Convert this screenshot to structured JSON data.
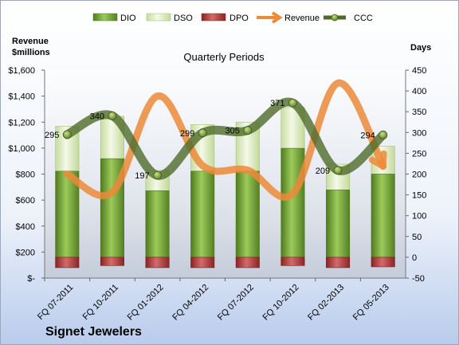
{
  "chart_data": {
    "type": "bar",
    "title": "Quarterly Periods",
    "company": "Signet Jewelers",
    "left_axis_title_line1": "Revenue",
    "left_axis_title_line2": "$millions",
    "right_axis_title": "Days",
    "categories": [
      "FQ 07-2011",
      "FQ 10-2011",
      "FQ 01-2012",
      "FQ 04-2012",
      "FQ 07-2012",
      "FQ 10-2012",
      "FQ 02-2013",
      "FQ 05-2013"
    ],
    "left_axis": {
      "min": 0,
      "max": 1600,
      "step": 200,
      "tick_labels": [
        "$-",
        "$200",
        "$400",
        "$600",
        "$800",
        "$1,000",
        "$1,200",
        "$1,400",
        "$1,600"
      ]
    },
    "right_axis": {
      "min": -50,
      "max": 450,
      "step": 50,
      "tick_labels": [
        "-50",
        "0",
        "50",
        "100",
        "150",
        "200",
        "250",
        "300",
        "350",
        "400",
        "450"
      ]
    },
    "series": [
      {
        "name": "DIO",
        "kind": "stacked-bar",
        "axis": "right",
        "color": "#7aa83a",
        "values": [
          207,
          237,
          160,
          207,
          207,
          262,
          162,
          200
        ]
      },
      {
        "name": "DSO",
        "kind": "stacked-bar",
        "axis": "right",
        "color": "#e3f0c8",
        "values": [
          108,
          102,
          49,
          112,
          118,
          98,
          62,
          67
        ]
      },
      {
        "name": "DPO",
        "kind": "stacked-bar-negative",
        "axis": "right",
        "color": "#b03a3a",
        "values": [
          -25,
          -20,
          -25,
          -25,
          -25,
          -20,
          -25,
          -23
        ]
      },
      {
        "name": "Revenue",
        "kind": "line",
        "axis": "left",
        "color": "#ec8a3a",
        "values": [
          800,
          660,
          1400,
          865,
          830,
          650,
          1500,
          860
        ]
      },
      {
        "name": "CCC",
        "kind": "line",
        "axis": "right",
        "color": "#4f6b2a",
        "values": [
          295,
          340,
          197,
          299,
          305,
          371,
          209,
          294
        ]
      }
    ],
    "data_labels": [
      "295",
      "340",
      "197",
      "299",
      "305",
      "371",
      "209",
      "294"
    ],
    "legend_position": "top",
    "grid": false
  }
}
